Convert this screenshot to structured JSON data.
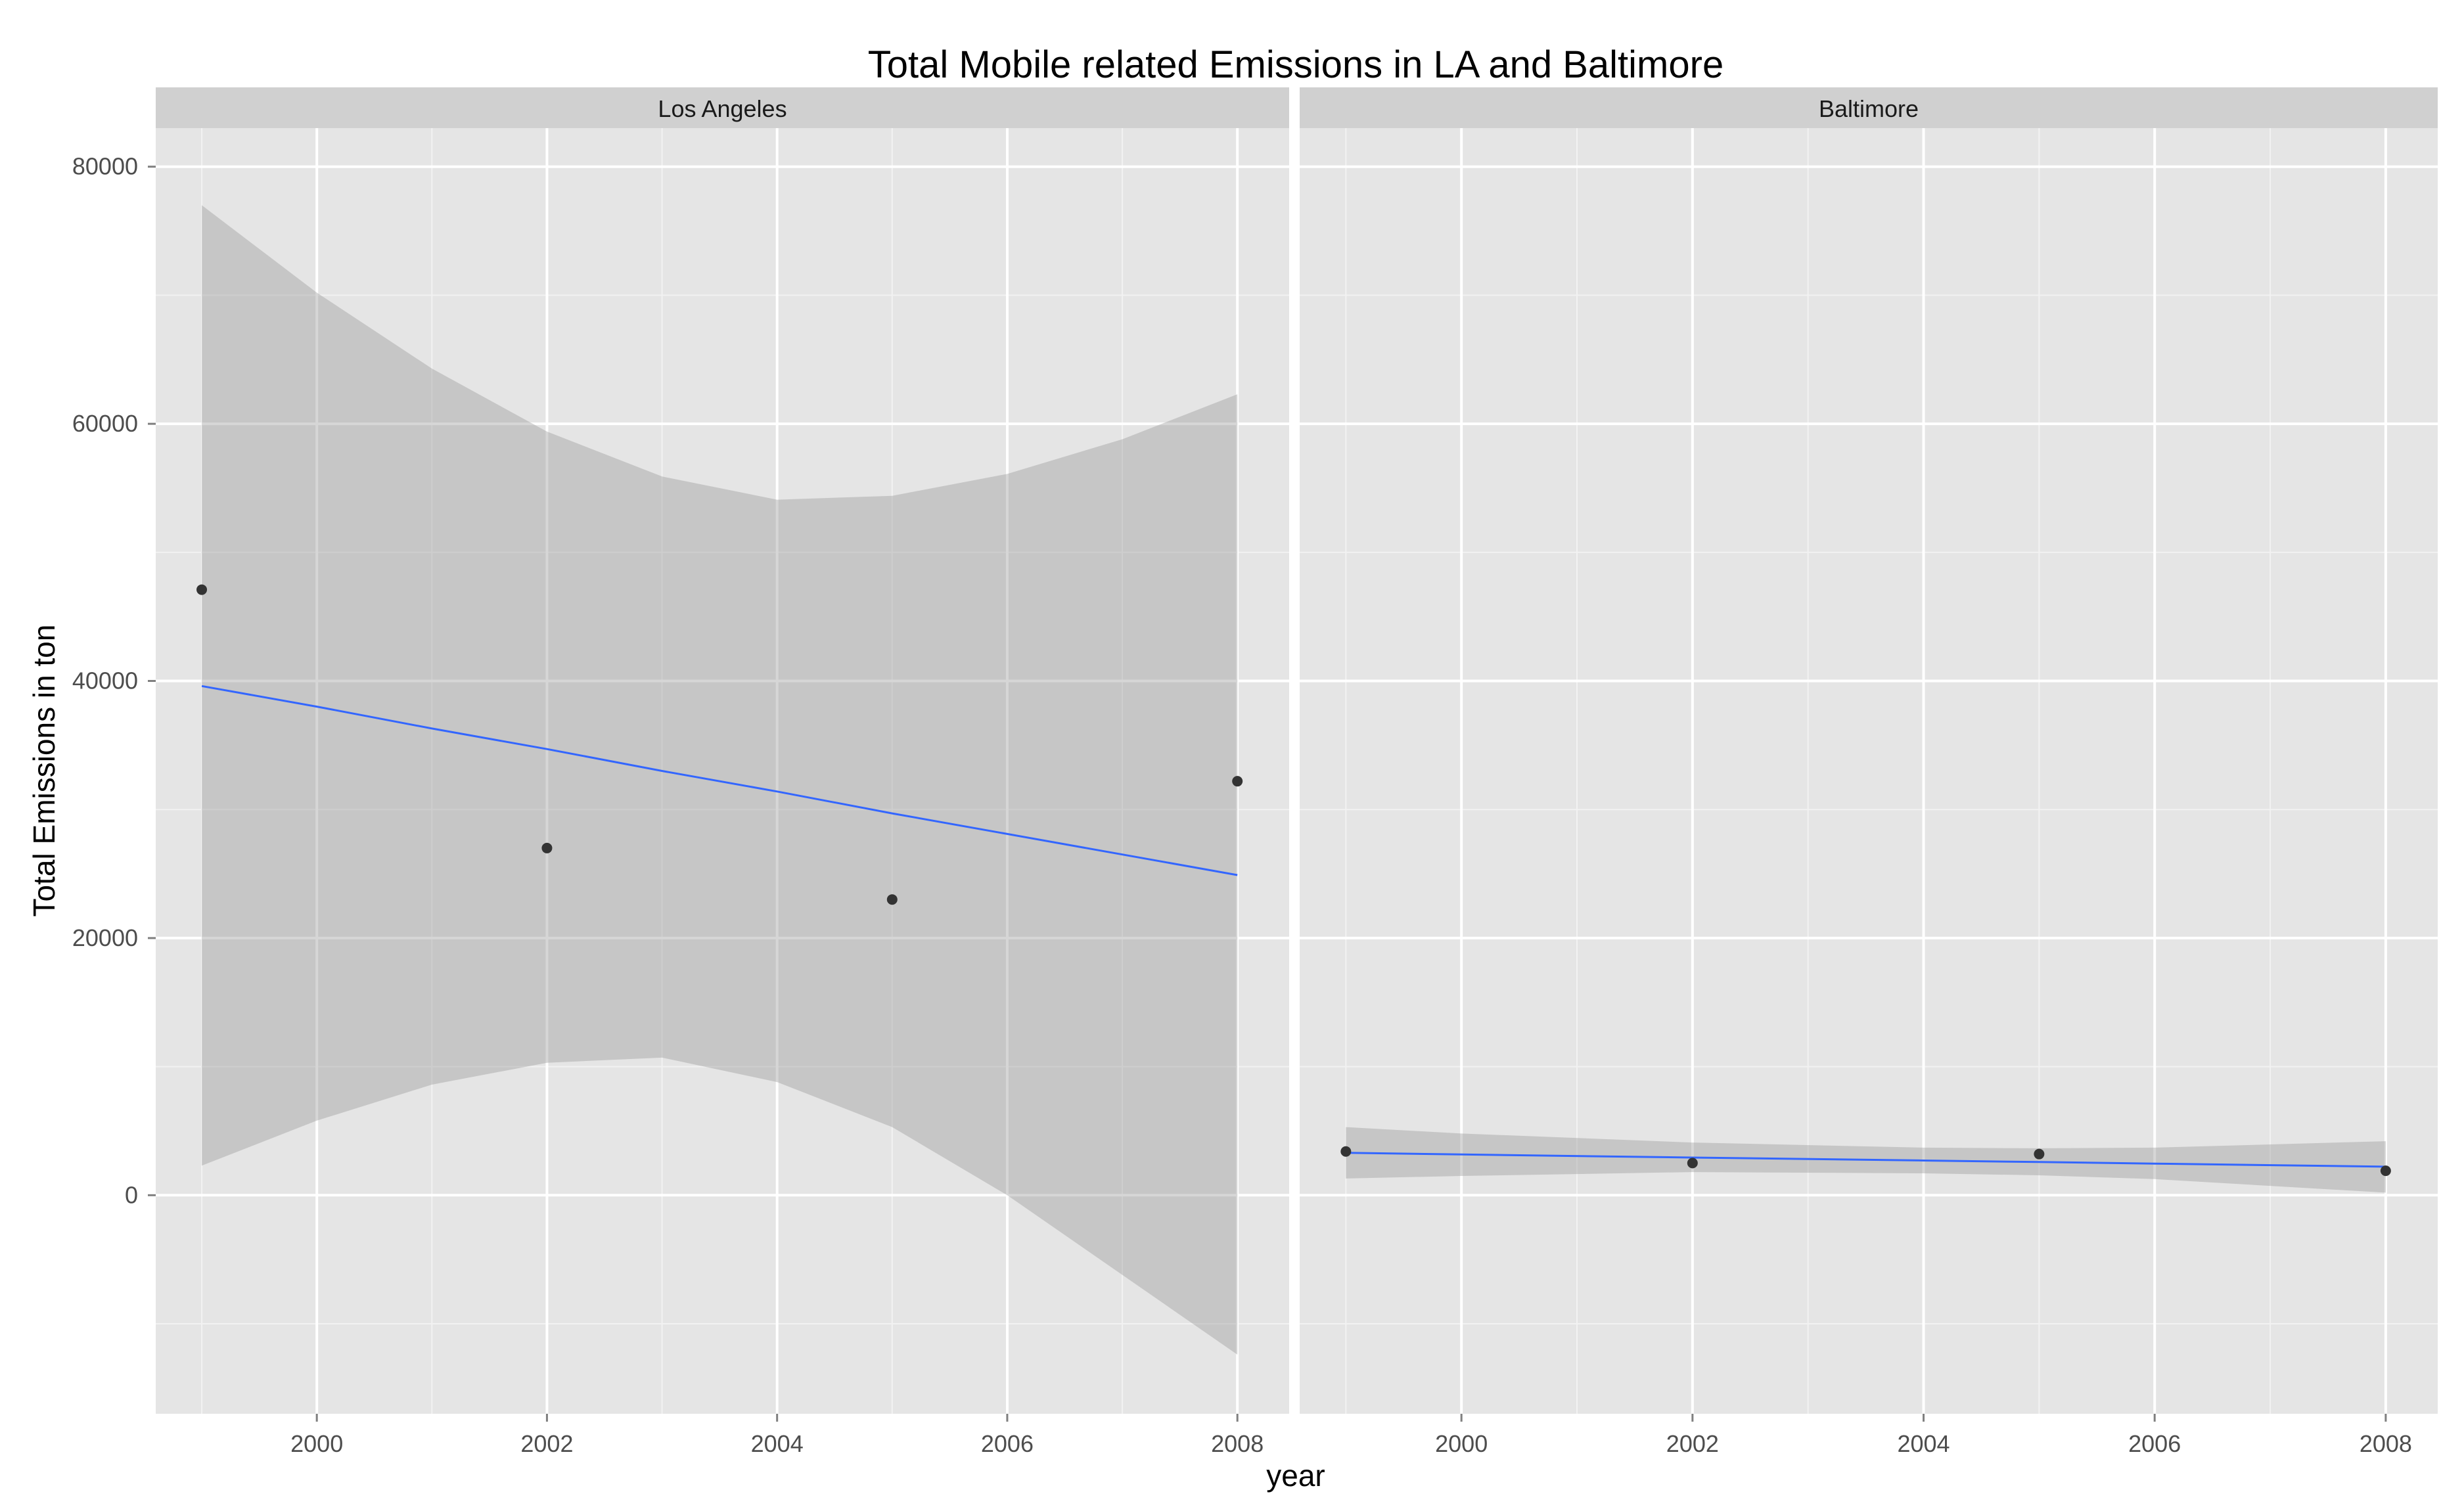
{
  "chart_data": {
    "type": "scatter",
    "title": "Total Mobile related Emissions in LA and Baltimore",
    "xlabel": "year",
    "ylabel": "Total Emissions in ton",
    "xlim": [
      1998.6,
      2008.45
    ],
    "ylim": [
      -17000,
      83000
    ],
    "x_ticks": [
      2000,
      2002,
      2004,
      2006,
      2008
    ],
    "x_tick_labels": [
      "2000",
      "2002",
      "2004",
      "2006",
      "2008"
    ],
    "y_ticks": [
      0,
      20000,
      40000,
      60000,
      80000
    ],
    "y_tick_labels": [
      "0",
      "20000",
      "40000",
      "60000",
      "80000"
    ],
    "grid": true,
    "colors": {
      "panel_bg": "#e5e5e5",
      "strip_bg": "#d0d0d0",
      "grid_major": "#ffffff",
      "grid_minor": "#f2f2f2",
      "point": "#333333",
      "smooth_line": "#3366ff",
      "ribbon": "#999999"
    },
    "panels": [
      {
        "name": "Los Angeles",
        "points": [
          {
            "x": 1999,
            "y": 47100
          },
          {
            "x": 2002,
            "y": 27000
          },
          {
            "x": 2005,
            "y": 23000
          },
          {
            "x": 2008,
            "y": 32200
          }
        ],
        "fit": [
          {
            "x": 1999,
            "y": 39600,
            "lower": 2300,
            "upper": 77000
          },
          {
            "x": 2000,
            "y": 38000,
            "lower": 5800,
            "upper": 70200
          },
          {
            "x": 2001,
            "y": 36300,
            "lower": 8600,
            "upper": 64300
          },
          {
            "x": 2002,
            "y": 34700,
            "lower": 10300,
            "upper": 59400
          },
          {
            "x": 2003,
            "y": 33000,
            "lower": 10700,
            "upper": 55900
          },
          {
            "x": 2004,
            "y": 31400,
            "lower": 8800,
            "upper": 54100
          },
          {
            "x": 2005,
            "y": 29700,
            "lower": 5300,
            "upper": 54400
          },
          {
            "x": 2006,
            "y": 28100,
            "lower": 0,
            "upper": 56100
          },
          {
            "x": 2007,
            "y": 26500,
            "lower": -6200,
            "upper": 58800
          },
          {
            "x": 2008,
            "y": 24900,
            "lower": -12400,
            "upper": 62300
          }
        ]
      },
      {
        "name": "Baltimore",
        "points": [
          {
            "x": 1999,
            "y": 3400
          },
          {
            "x": 2002,
            "y": 2500
          },
          {
            "x": 2005,
            "y": 3200
          },
          {
            "x": 2008,
            "y": 1900
          }
        ],
        "fit": [
          {
            "x": 1999,
            "y": 3300,
            "lower": 1300,
            "upper": 5300
          },
          {
            "x": 2000,
            "y": 3170,
            "lower": 1500,
            "upper": 4800
          },
          {
            "x": 2002,
            "y": 2930,
            "lower": 1800,
            "upper": 4100
          },
          {
            "x": 2004,
            "y": 2700,
            "lower": 1700,
            "upper": 3700
          },
          {
            "x": 2005,
            "y": 2580,
            "lower": 1550,
            "upper": 3650
          },
          {
            "x": 2006,
            "y": 2460,
            "lower": 1250,
            "upper": 3700
          },
          {
            "x": 2008,
            "y": 2220,
            "lower": 200,
            "upper": 4200
          }
        ]
      }
    ]
  }
}
